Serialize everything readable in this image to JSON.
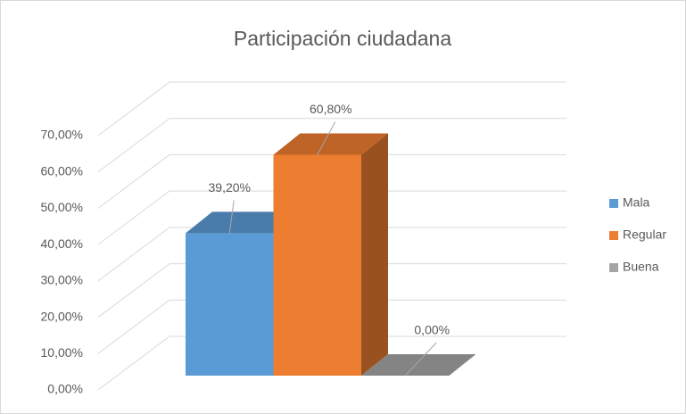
{
  "chart_data": {
    "type": "bar3d",
    "title": "Participación ciudadana",
    "series": [
      {
        "name": "Mala",
        "color": "#5b9bd5",
        "values": [
          39.2
        ],
        "value_labels": [
          "39,20%"
        ]
      },
      {
        "name": "Regular",
        "color": "#ed7d31",
        "values": [
          60.8
        ],
        "value_labels": [
          "60,80%"
        ]
      },
      {
        "name": "Buena",
        "color": "#a5a5a5",
        "values": [
          0
        ],
        "value_labels": [
          "0,00%"
        ]
      }
    ],
    "ylim": [
      0,
      70
    ],
    "yticks": [
      {
        "value": 0,
        "label": "0,00%"
      },
      {
        "value": 10,
        "label": "10,00%"
      },
      {
        "value": 20,
        "label": "20,00%"
      },
      {
        "value": 30,
        "label": "30,00%"
      },
      {
        "value": 40,
        "label": "40,00%"
      },
      {
        "value": 50,
        "label": "50,00%"
      },
      {
        "value": 60,
        "label": "60,00%"
      },
      {
        "value": 70,
        "label": "70,00%"
      }
    ],
    "grid": true,
    "legend": "right"
  }
}
